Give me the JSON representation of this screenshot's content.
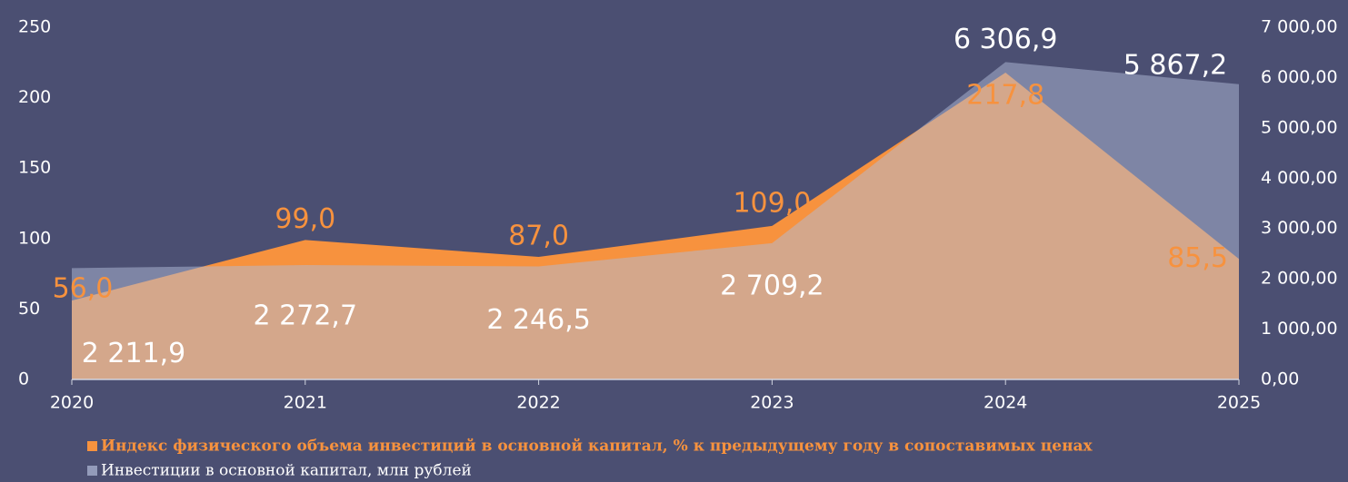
{
  "chart_data": {
    "type": "area",
    "x": [
      2020,
      2021,
      2022,
      2023,
      2024,
      2025
    ],
    "xlim": [
      2020,
      2025
    ],
    "xticks": [
      2020,
      2021,
      2022,
      2023,
      2024,
      2025
    ],
    "ylim": [
      0,
      250
    ],
    "yticks": [
      0,
      50,
      100,
      150,
      200,
      250
    ],
    "y2lim": [
      0,
      7000
    ],
    "y2ticks": [
      {
        "value": 0,
        "label": "0,00"
      },
      {
        "value": 1000,
        "label": "1 000,00"
      },
      {
        "value": 2000,
        "label": "2 000,00"
      },
      {
        "value": 3000,
        "label": "3 000,00"
      },
      {
        "value": 4000,
        "label": "4 000,00"
      },
      {
        "value": 5000,
        "label": "5 000,00"
      },
      {
        "value": 6000,
        "label": "6 000,00"
      },
      {
        "value": 7000,
        "label": "7 000,00"
      }
    ],
    "legend": "bottom",
    "series": [
      {
        "name": "Индекс физического объема инвестиций в основной капитал, % к предыдущему году в сопоставимых ценах",
        "color": "#f7923e",
        "axis": "y",
        "values": [
          56.0,
          99.0,
          87.0,
          109.0,
          217.8,
          85.5
        ],
        "value_labels": [
          "56,0",
          "99,0",
          "87,0",
          "109,0",
          "217,8",
          "85,5"
        ]
      },
      {
        "name": "Инвестиции в основной капитал, млн рублей",
        "color": "#b2bcd8",
        "axis": "y2",
        "values": [
          2211.9,
          2272.7,
          2246.5,
          2709.2,
          6306.9,
          5867.2
        ],
        "value_labels": [
          "2 211,9",
          "2 272,7",
          "2 246,5",
          "2 709,2",
          "6 306,9",
          "5 867,2"
        ]
      }
    ]
  }
}
